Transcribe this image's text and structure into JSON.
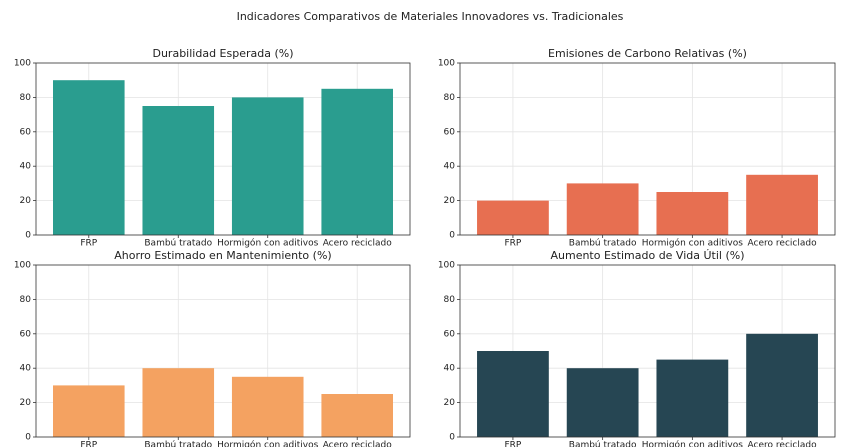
{
  "title": "Indicadores Comparativos de Materiales Innovadores vs. Tradicionales",
  "chart_data": [
    {
      "type": "bar",
      "title": "Durabilidad Esperada (%)",
      "categories": [
        "FRP",
        "Bambú tratado",
        "Hormigón con aditivos",
        "Acero reciclado"
      ],
      "values": [
        90,
        75,
        80,
        85
      ],
      "color": "#2a9d8f",
      "ylim": [
        0,
        100
      ],
      "yticks": [
        0,
        20,
        40,
        60,
        80,
        100
      ],
      "grid": true
    },
    {
      "type": "bar",
      "title": "Emisiones de Carbono Relativas (%)",
      "categories": [
        "FRP",
        "Bambú tratado",
        "Hormigón con aditivos",
        "Acero reciclado"
      ],
      "values": [
        20,
        30,
        25,
        35
      ],
      "color": "#e76f51",
      "ylim": [
        0,
        100
      ],
      "yticks": [
        0,
        20,
        40,
        60,
        80,
        100
      ],
      "grid": true
    },
    {
      "type": "bar",
      "title": "Ahorro Estimado en Mantenimiento (%)",
      "categories": [
        "FRP",
        "Bambú tratado",
        "Hormigón con aditivos",
        "Acero reciclado"
      ],
      "values": [
        30,
        40,
        35,
        25
      ],
      "color": "#f4a261",
      "ylim": [
        0,
        100
      ],
      "yticks": [
        0,
        20,
        40,
        60,
        80,
        100
      ],
      "grid": true
    },
    {
      "type": "bar",
      "title": "Aumento Estimado de Vida Útil (%)",
      "categories": [
        "FRP",
        "Bambú tratado",
        "Hormigón con aditivos",
        "Acero reciclado"
      ],
      "values": [
        50,
        40,
        45,
        60
      ],
      "color": "#264653",
      "ylim": [
        0,
        100
      ],
      "yticks": [
        0,
        20,
        40,
        60,
        80,
        100
      ],
      "grid": true
    }
  ]
}
